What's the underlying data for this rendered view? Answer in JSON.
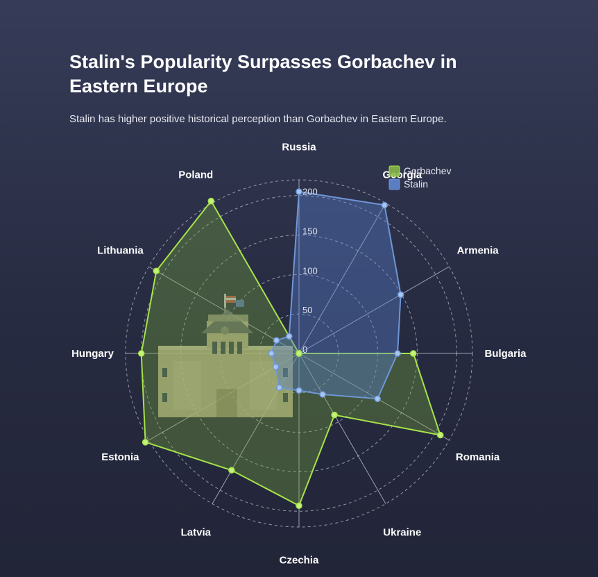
{
  "header": {
    "title": "Stalin's Popularity Surpasses Gorbachev in Eastern Europe",
    "subtitle": "Stalin has higher positive historical perception than Gorbachev in Eastern Europe."
  },
  "chart_data": {
    "type": "radar",
    "categories": [
      "Russia",
      "Georgia",
      "Armenia",
      "Bulgaria",
      "Romania",
      "Ukraine",
      "Czechia",
      "Latvia",
      "Estonia",
      "Hungary",
      "Lithuania",
      "Poland"
    ],
    "series": [
      {
        "name": "Gorbachev",
        "values": [
          0,
          0,
          0,
          145,
          207,
          90,
          193,
          171,
          225,
          200,
          209,
          223
        ],
        "color": "#a6e34a"
      },
      {
        "name": "Stalin",
        "values": [
          205,
          217,
          149,
          125,
          115,
          60,
          47,
          50,
          34,
          35,
          33,
          25
        ],
        "color": "#6f96d6"
      }
    ],
    "radial_ticks": [
      0,
      50,
      100,
      150,
      200
    ],
    "rlim": [
      0,
      200
    ],
    "grid": true,
    "legend_position": "top-right"
  },
  "illustration": {
    "icon": "kremlin-building-icon"
  }
}
